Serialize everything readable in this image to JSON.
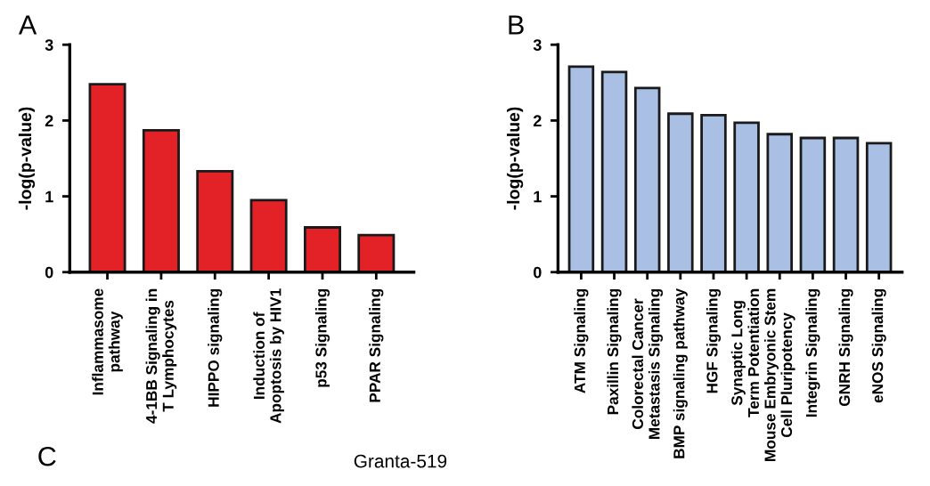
{
  "chart_data": [
    {
      "type": "bar",
      "ylabel": "-log(p-value)",
      "categories": [
        "Inflammasome\npathway",
        "4-1BB Signaling in\nT Lymphocytes",
        "HIPPO signaling",
        "Induction of\nApoptosis by HIV1",
        "p53 Signaling",
        "PPAR Signaling"
      ],
      "values": [
        2.48,
        1.87,
        1.33,
        0.95,
        0.59,
        0.49
      ],
      "color": "#e32228",
      "ylim": [
        0,
        3
      ],
      "yticks": [
        0,
        1,
        2,
        3
      ],
      "grid": false,
      "annotations": [
        "A",
        "C",
        "Granta-519"
      ]
    },
    {
      "type": "bar",
      "ylabel": "-log(p-value)",
      "categories": [
        "ATM Signaling",
        "Paxillin Signaling",
        "Colorectal Cancer\nMetastasis Signaling",
        "BMP signaling pathway",
        "HGF Signaling",
        "Synaptic Long\nTerm Potentiation",
        "Mouse Embryonic Stem\nCell Pluripotency",
        "Integrin Signaling",
        "GNRH Signaling",
        "eNOS Signaling"
      ],
      "values": [
        2.71,
        2.64,
        2.43,
        2.09,
        2.07,
        1.97,
        1.82,
        1.77,
        1.77,
        1.7
      ],
      "color": "#a9c0e4",
      "ylim": [
        0,
        3
      ],
      "yticks": [
        0,
        1,
        2,
        3
      ],
      "grid": false,
      "annotations": [
        "B"
      ]
    }
  ]
}
